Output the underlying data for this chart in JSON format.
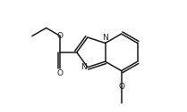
{
  "bg_color": "#ffffff",
  "line_color": "#1a1a1a",
  "line_width": 1.1,
  "text_color": "#1a1a1a",
  "font_size": 6.5,
  "figsize": [
    2.09,
    1.26
  ],
  "dpi": 100,
  "xlim": [
    0,
    10
  ],
  "ylim": [
    0,
    6
  ]
}
